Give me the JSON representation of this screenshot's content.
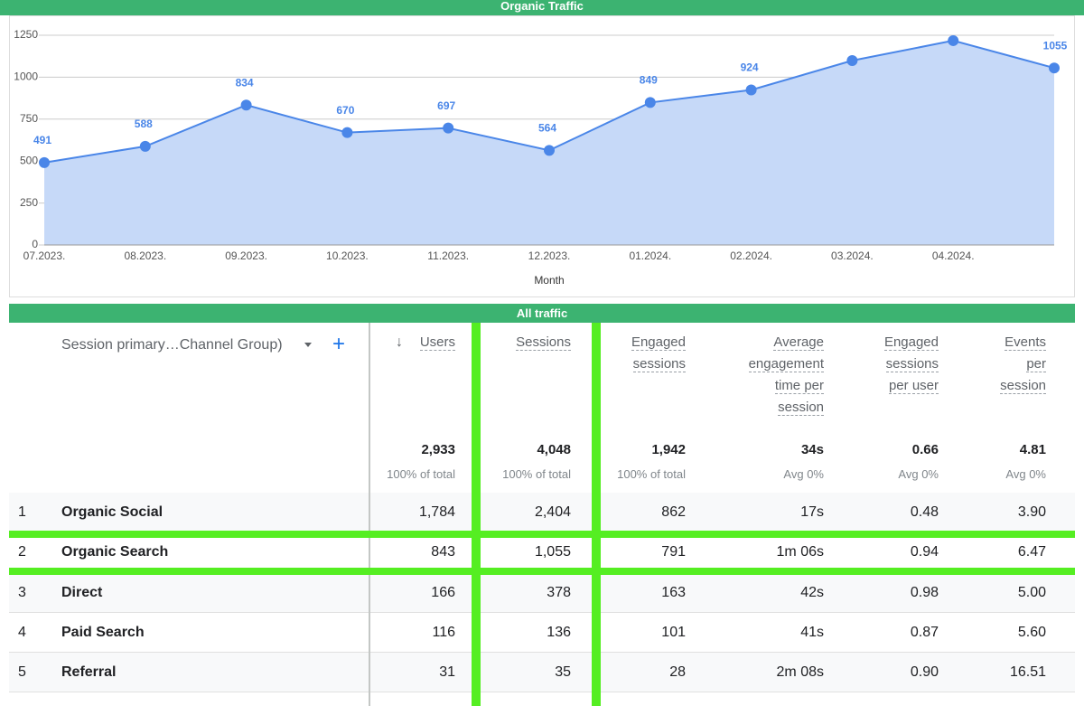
{
  "chart_data": {
    "type": "area",
    "title": "Organic Traffic",
    "x_label": "Month",
    "categories": [
      "07.2023.",
      "08.2023.",
      "09.2023.",
      "10.2023.",
      "11.2023.",
      "12.2023.",
      "01.2024.",
      "02.2024.",
      "03.2024.",
      "04.2024.",
      null
    ],
    "values": [
      491,
      588,
      834,
      670,
      697,
      564,
      849,
      924,
      1099,
      1218,
      1055
    ],
    "value_labels": [
      "491",
      "588",
      "834",
      "670",
      "697",
      "564",
      "849",
      "924",
      null,
      null,
      "1055"
    ],
    "color": "#4a86e8",
    "fill": "#c6d9f8",
    "ylim": [
      0,
      1350
    ],
    "yticks": [
      0,
      250,
      500,
      750,
      1000,
      1250
    ],
    "grid": true
  },
  "table": {
    "title": "All traffic",
    "dimension_header": "Session primary…Channel Group)",
    "sort_indicator": "↓",
    "columns": [
      {
        "header": "Users",
        "total": "2,933",
        "total_note": "100% of total"
      },
      {
        "header": "Sessions",
        "total": "4,048",
        "total_note": "100% of total"
      },
      {
        "header": "Engaged sessions",
        "total": "1,942",
        "total_note": "100% of total"
      },
      {
        "header": "Average engagement time per session",
        "total": "34s",
        "total_note": "Avg 0%"
      },
      {
        "header": "Engaged sessions per user",
        "total": "0.66",
        "total_note": "Avg 0%"
      },
      {
        "header": "Events per session",
        "total": "4.81",
        "total_note": "Avg 0%"
      }
    ],
    "rows": [
      {
        "index": "1",
        "name": "Organic Social",
        "cells": [
          "1,784",
          "2,404",
          "862",
          "17s",
          "0.48",
          "3.90"
        ]
      },
      {
        "index": "2",
        "name": "Organic Search",
        "cells": [
          "843",
          "1,055",
          "791",
          "1m 06s",
          "0.94",
          "6.47"
        ]
      },
      {
        "index": "3",
        "name": "Direct",
        "cells": [
          "166",
          "378",
          "163",
          "42s",
          "0.98",
          "5.00"
        ]
      },
      {
        "index": "4",
        "name": "Paid Search",
        "cells": [
          "116",
          "136",
          "101",
          "41s",
          "0.87",
          "5.60"
        ]
      },
      {
        "index": "5",
        "name": "Referral",
        "cells": [
          "31",
          "35",
          "28",
          "2m 08s",
          "0.90",
          "16.51"
        ]
      }
    ]
  }
}
